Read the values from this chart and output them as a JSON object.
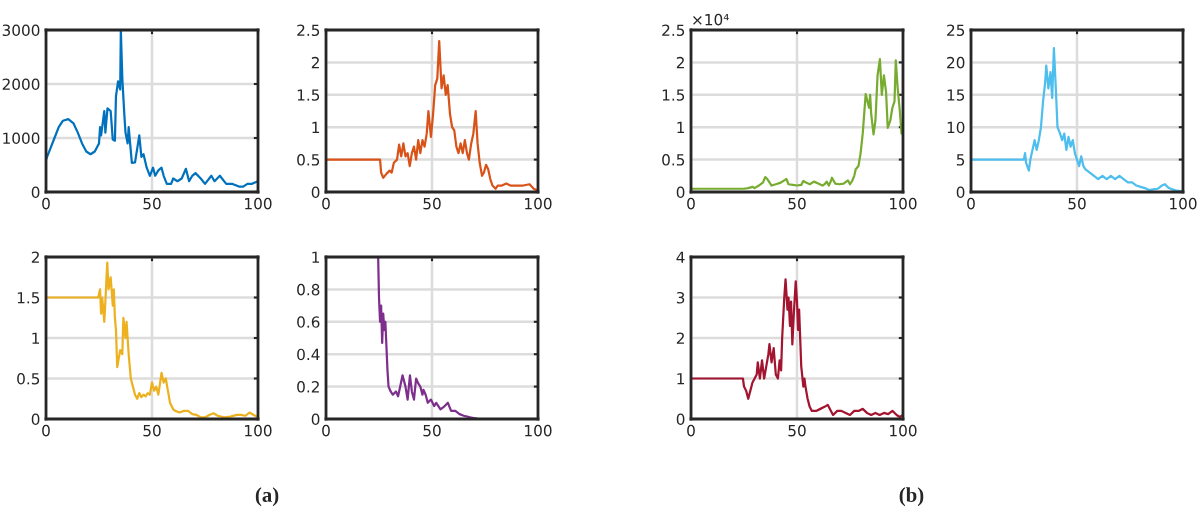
{
  "chart_data": [
    {
      "type": "line",
      "xlim": [
        0,
        100
      ],
      "xticks": [
        0,
        50,
        100
      ],
      "ylim": [
        0,
        3000
      ],
      "yticks": [
        0,
        1000,
        2000,
        3000
      ],
      "grid": true,
      "x": [
        0,
        2,
        4,
        6,
        8,
        10.5,
        13,
        15,
        17,
        19,
        21,
        23,
        25,
        25.5,
        26,
        27.5,
        28,
        29,
        30.5,
        31.5,
        32.5,
        33,
        34,
        35,
        35.3,
        36,
        37,
        37.5,
        38.5,
        39,
        40.5,
        42,
        44,
        45,
        46,
        47.5,
        49,
        50.5,
        51.5,
        53,
        54.5,
        55.5,
        57,
        59,
        60,
        62,
        64,
        66,
        67.5,
        69,
        70.5,
        73,
        75,
        78,
        79.5,
        82,
        85,
        88,
        91,
        93,
        95,
        97,
        100
      ],
      "series": [
        {
          "color": "#0072bd",
          "values": [
            600,
            800,
            1000,
            1200,
            1320,
            1350,
            1270,
            1100,
            900,
            750,
            700,
            750,
            900,
            1200,
            1050,
            1500,
            1100,
            1550,
            1500,
            970,
            950,
            1770,
            2050,
            1900,
            3000,
            2100,
            1400,
            1100,
            900,
            1200,
            540,
            550,
            1050,
            650,
            700,
            450,
            300,
            450,
            300,
            400,
            450,
            300,
            150,
            150,
            250,
            200,
            250,
            430,
            200,
            300,
            350,
            250,
            150,
            300,
            200,
            300,
            150,
            150,
            100,
            100,
            150,
            150,
            200
          ]
        }
      ]
    },
    {
      "type": "line",
      "xlim": [
        0,
        100
      ],
      "xticks": [
        0,
        50,
        100
      ],
      "ylim": [
        0,
        2.5
      ],
      "yticks": [
        0,
        0.5,
        1,
        1.5,
        2,
        2.5
      ],
      "grid": true,
      "x": [
        0,
        25.5,
        26,
        27,
        28.5,
        30,
        31,
        32,
        33.5,
        34.5,
        35.5,
        36.5,
        37.5,
        38.5,
        39.5,
        40.5,
        41.5,
        42.5,
        43.5,
        44.5,
        45.5,
        46.5,
        47.5,
        48.3,
        49.5,
        50.5,
        51.5,
        52.5,
        53.4,
        54.5,
        55.5,
        56.5,
        57.4,
        58.5,
        59.5,
        60.5,
        61.5,
        62.5,
        63.5,
        64.5,
        65.5,
        66.5,
        67.4,
        68.5,
        69.5,
        70.6,
        71.5,
        72.5,
        73.6,
        74.5,
        75.5,
        76.5,
        77.5,
        78.5,
        80,
        81,
        83,
        85,
        87,
        90,
        93,
        96,
        98,
        100
      ],
      "series": [
        {
          "color": "#d95319",
          "values": [
            0.5,
            0.5,
            0.3,
            0.22,
            0.28,
            0.33,
            0.3,
            0.45,
            0.5,
            0.73,
            0.55,
            0.75,
            0.55,
            0.6,
            0.4,
            0.6,
            0.7,
            0.5,
            0.8,
            0.6,
            0.8,
            0.7,
            0.9,
            1.25,
            0.85,
            1.2,
            1.65,
            1.75,
            2.33,
            1.6,
            1.8,
            1.5,
            1.65,
            1.2,
            1.0,
            0.95,
            0.7,
            0.6,
            0.75,
            0.6,
            0.8,
            0.6,
            0.5,
            0.75,
            0.9,
            1.25,
            0.75,
            0.45,
            0.25,
            0.3,
            0.42,
            0.35,
            0.2,
            0.1,
            0.05,
            0.1,
            0.1,
            0.13,
            0.1,
            0.1,
            0.1,
            0.12,
            0.05,
            0.02
          ]
        }
      ]
    },
    {
      "type": "line",
      "xlim": [
        0,
        100
      ],
      "xticks": [
        0,
        50,
        100
      ],
      "ylim": [
        0,
        2
      ],
      "yticks": [
        0,
        0.5,
        1,
        1.5,
        2
      ],
      "grid": true,
      "annotations": [
        "(a)"
      ],
      "x": [
        0,
        24.6,
        25.5,
        26,
        26.5,
        27.5,
        28,
        28.9,
        29.5,
        30.5,
        31.5,
        32,
        32.5,
        33,
        33.6,
        35,
        36,
        36.5,
        37.5,
        38,
        39,
        40,
        41,
        42,
        43,
        44,
        45,
        46,
        47,
        48,
        49,
        50,
        51,
        52,
        53,
        54.5,
        55.5,
        56.5,
        57.5,
        58.5,
        60,
        61,
        63,
        65,
        67,
        69,
        71,
        73,
        75,
        77,
        79,
        81,
        84,
        87,
        90,
        92,
        94,
        96,
        98,
        100
      ],
      "series": [
        {
          "color": "#edb120",
          "values": [
            1.5,
            1.5,
            1.6,
            1.3,
            1.5,
            1.2,
            1.45,
            1.93,
            1.6,
            1.75,
            1.4,
            1.6,
            1.25,
            1.1,
            0.64,
            0.85,
            0.8,
            1.25,
            1.0,
            1.2,
            0.8,
            0.5,
            0.4,
            0.3,
            0.25,
            0.32,
            0.27,
            0.3,
            0.28,
            0.32,
            0.3,
            0.45,
            0.35,
            0.4,
            0.3,
            0.57,
            0.45,
            0.5,
            0.35,
            0.2,
            0.12,
            0.1,
            0.08,
            0.1,
            0.1,
            0.06,
            0.05,
            0.02,
            0.02,
            0.05,
            0.07,
            0.04,
            0.02,
            0.03,
            0.05,
            0.05,
            0.04,
            0.08,
            0.05,
            0.02
          ]
        }
      ]
    },
    {
      "type": "line",
      "xlim": [
        0,
        100
      ],
      "xticks": [
        0,
        50,
        100
      ],
      "ylim": [
        0,
        1
      ],
      "yticks": [
        0,
        0.2,
        0.4,
        0.6,
        0.8,
        1
      ],
      "grid": true,
      "x": [
        0,
        24.6,
        25,
        25.5,
        26,
        26.5,
        27,
        27.5,
        28,
        28.5,
        29,
        29.5,
        30.5,
        31.5,
        33,
        34,
        35,
        36.1,
        37.5,
        38.5,
        39.6,
        40.5,
        41.5,
        42.5,
        43.5,
        44.5,
        45.5,
        46,
        47,
        48,
        49.5,
        51,
        52,
        54,
        56,
        57.5,
        59,
        61,
        63,
        65,
        68,
        72,
        100
      ],
      "series": [
        {
          "color": "#7e2f8e",
          "values": [
            1,
            1,
            0.75,
            0.6,
            0.7,
            0.47,
            0.65,
            0.55,
            0.6,
            0.45,
            0.3,
            0.2,
            0.17,
            0.15,
            0.17,
            0.14,
            0.2,
            0.27,
            0.2,
            0.12,
            0.27,
            0.17,
            0.12,
            0.25,
            0.22,
            0.2,
            0.15,
            0.18,
            0.15,
            0.1,
            0.12,
            0.08,
            0.1,
            0.06,
            0.08,
            0.1,
            0.05,
            0.05,
            0.03,
            0.02,
            0.01,
            0,
            0
          ]
        }
      ]
    },
    {
      "type": "line",
      "xlim": [
        0,
        100
      ],
      "xticks": [
        0,
        50,
        100
      ],
      "ylim": [
        0,
        2.5
      ],
      "yticks": [
        0,
        0.5,
        1,
        1.5,
        2,
        2.5
      ],
      "grid": true,
      "annotations": [
        "×10⁴"
      ],
      "x": [
        0,
        25,
        27,
        29,
        30,
        32,
        34,
        35,
        36,
        37,
        38,
        40,
        42,
        44,
        45,
        46,
        48,
        50,
        52,
        53,
        54,
        56,
        58,
        60,
        62,
        63,
        64,
        65,
        66,
        66.5,
        68,
        70,
        72,
        74,
        75,
        76,
        77,
        77.7,
        79,
        80,
        81,
        82.4,
        84,
        84.5,
        85,
        86.1,
        87,
        88,
        89.1,
        90,
        91,
        92,
        92.8,
        94,
        95,
        96,
        96.6,
        97.5,
        98.5,
        99.3,
        100
      ],
      "series": [
        {
          "color": "#77ac30",
          "values": [
            0.05,
            0.05,
            0.06,
            0.08,
            0.06,
            0.1,
            0.15,
            0.23,
            0.2,
            0.15,
            0.1,
            0.12,
            0.14,
            0.18,
            0.2,
            0.12,
            0.11,
            0.1,
            0.11,
            0.17,
            0.15,
            0.12,
            0.16,
            0.13,
            0.1,
            0.12,
            0.16,
            0.1,
            0.17,
            0.22,
            0.13,
            0.12,
            0.13,
            0.18,
            0.12,
            0.17,
            0.25,
            0.35,
            0.4,
            0.6,
            0.9,
            1.51,
            1.3,
            1.5,
            1.2,
            0.89,
            1.1,
            1.8,
            2.05,
            1.5,
            1.8,
            1.55,
            0.99,
            1.1,
            1.3,
            1.4,
            2.03,
            1.6,
            1.25,
            0.9,
            1.05
          ]
        }
      ]
    },
    {
      "type": "line",
      "xlim": [
        0,
        100
      ],
      "xticks": [
        0,
        50,
        100
      ],
      "ylim": [
        0,
        25
      ],
      "yticks": [
        0,
        5,
        10,
        15,
        20,
        25
      ],
      "grid": true,
      "x": [
        0,
        24.9,
        25.5,
        26,
        27.3,
        28,
        29,
        30,
        31,
        32,
        33,
        34,
        35,
        35.5,
        36.5,
        37.5,
        38.3,
        39.1,
        40,
        40.8,
        42,
        43,
        44,
        45,
        46,
        47,
        48,
        49,
        50,
        51,
        52,
        53,
        54,
        56,
        58,
        60,
        62,
        64,
        66,
        68,
        70,
        72,
        74,
        76,
        78,
        80,
        82,
        84,
        86,
        88,
        90,
        91.5,
        93,
        95,
        97,
        100
      ],
      "series": [
        {
          "color": "#4dbeee",
          "values": [
            5,
            5,
            6,
            4.5,
            3.3,
            5,
            6.5,
            8,
            6.5,
            8,
            10,
            14,
            17,
            19.5,
            16,
            18.5,
            14.5,
            22.2,
            16,
            10,
            9,
            8,
            9,
            6.5,
            8.5,
            7,
            8,
            6,
            5,
            4,
            5.5,
            4,
            3.5,
            3,
            2.5,
            2,
            2.5,
            2,
            2.5,
            2,
            2.5,
            2,
            1.5,
            1.5,
            1,
            0.8,
            0.6,
            0.3,
            0.4,
            0.5,
            1,
            1.2,
            0.7,
            0.4,
            0.2,
            0.1
          ]
        }
      ]
    },
    {
      "type": "line",
      "xlim": [
        0,
        100
      ],
      "xticks": [
        0,
        50,
        100
      ],
      "ylim": [
        0,
        4
      ],
      "yticks": [
        0,
        1,
        2,
        3,
        4
      ],
      "grid": true,
      "annotations": [
        "(b)"
      ],
      "x": [
        0,
        24.5,
        25,
        26,
        27,
        28,
        29,
        30,
        31,
        31.5,
        32.5,
        33.5,
        34.5,
        35.5,
        36.5,
        37,
        38,
        39,
        40,
        41,
        41.8,
        42.5,
        43,
        44,
        44.6,
        45.5,
        46,
        46.7,
        47.2,
        47.8,
        48.5,
        49.4,
        50,
        50.5,
        51,
        51.5,
        52,
        53,
        53.5,
        54,
        55,
        56,
        57,
        59,
        61,
        63,
        64.5,
        66,
        67,
        69,
        71,
        73,
        75,
        77,
        79,
        81,
        83,
        85,
        87,
        89,
        91,
        93,
        95,
        97,
        98.5,
        100
      ],
      "series": [
        {
          "color": "#a2142f",
          "values": [
            1,
            1,
            0.8,
            0.7,
            0.5,
            0.7,
            0.9,
            1.0,
            1.1,
            1.4,
            1.0,
            1.45,
            1.0,
            1.3,
            1.6,
            1.85,
            1.4,
            1.75,
            1.1,
            1.0,
            1.45,
            1.2,
            2.0,
            3.0,
            3.45,
            2.7,
            3.0,
            2.3,
            2.9,
            1.84,
            2.6,
            3.4,
            2.9,
            2.2,
            2.7,
            2.0,
            1.3,
            0.8,
            1.0,
            0.8,
            0.5,
            0.3,
            0.2,
            0.2,
            0.25,
            0.3,
            0.35,
            0.2,
            0.1,
            0.2,
            0.2,
            0.15,
            0.1,
            0.2,
            0.2,
            0.25,
            0.15,
            0.1,
            0.15,
            0.1,
            0.15,
            0.12,
            0.2,
            0.1,
            0.05,
            0.1
          ]
        }
      ]
    }
  ]
}
